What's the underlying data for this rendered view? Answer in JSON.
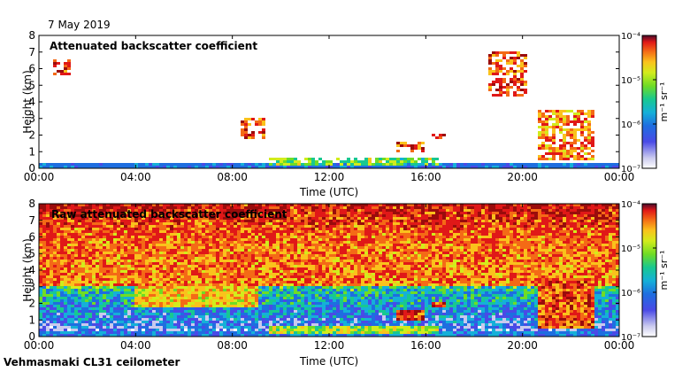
{
  "figure": {
    "date": "7 May 2019",
    "footer": "Vehmasmaki CL31 ceilometer"
  },
  "colors": {
    "scale": [
      "#ffffff",
      "#c9c9ee",
      "#4a4ae6",
      "#1e6ee0",
      "#15b0d8",
      "#18c890",
      "#6fdc25",
      "#d2ec1c",
      "#fac21c",
      "#f46a16",
      "#e01818",
      "#9a0c0c"
    ],
    "colorbar_top": "#4b0a2a"
  },
  "chart_data": [
    {
      "type": "heatmap",
      "title": "Attenuated backscatter coefficient",
      "xlabel": "Time (UTC)",
      "ylabel": "Height (km)",
      "x_ticks": [
        "00:00",
        "04:00",
        "08:00",
        "12:00",
        "16:00",
        "20:00",
        "00:00"
      ],
      "x_range_hours": [
        0,
        24
      ],
      "y_ticks": [
        "0",
        "1",
        "2",
        "3",
        "4",
        "5",
        "6",
        "7",
        "8"
      ],
      "ylim_km": [
        0,
        8
      ],
      "colorbar": {
        "unit": "m⁻¹ sr⁻¹",
        "scale": "log",
        "ticks": [
          "10⁻⁷",
          "10⁻⁶",
          "10⁻⁵",
          "10⁻⁴"
        ],
        "range": [
          1e-07,
          0.0001
        ]
      },
      "features": [
        {
          "label": "near-surface layer",
          "hours": [
            0,
            24
          ],
          "height_km": [
            0,
            0.35
          ],
          "level": 0.25
        },
        {
          "label": "boundary layer top",
          "hours": [
            9.5,
            16.5
          ],
          "height_km": [
            0.1,
            0.7
          ],
          "level": 0.55
        },
        {
          "label": "early cloud",
          "hours": [
            0.6,
            1.3
          ],
          "height_km": [
            5.6,
            6.5
          ],
          "level": 0.9
        },
        {
          "label": "cloud 08:30",
          "hours": [
            8.3,
            9.3
          ],
          "height_km": [
            1.8,
            3.0
          ],
          "level": 0.85
        },
        {
          "label": "cloud 14:50",
          "hours": [
            14.8,
            15.9
          ],
          "height_km": [
            1.0,
            1.6
          ],
          "level": 0.85
        },
        {
          "label": "cloud 16:20",
          "hours": [
            16.2,
            16.9
          ],
          "height_km": [
            1.7,
            2.0
          ],
          "level": 0.9
        },
        {
          "label": "elevated cloud 19:30",
          "hours": [
            18.6,
            20.2
          ],
          "height_km": [
            4.3,
            7.0
          ],
          "level": 0.85
        },
        {
          "label": "evening cloud",
          "hours": [
            20.6,
            23.0
          ],
          "height_km": [
            0.5,
            3.5
          ],
          "level": 0.8
        }
      ]
    },
    {
      "type": "heatmap",
      "title": "Raw attenuated backscatter coefficient",
      "xlabel": "Time (UTC)",
      "ylabel": "Height (km)",
      "x_ticks": [
        "00:00",
        "04:00",
        "08:00",
        "12:00",
        "16:00",
        "20:00",
        "00:00"
      ],
      "x_range_hours": [
        0,
        24
      ],
      "y_ticks": [
        "0",
        "1",
        "2",
        "3",
        "4",
        "5",
        "6",
        "7",
        "8"
      ],
      "ylim_km": [
        0,
        8
      ],
      "colorbar": {
        "unit": "m⁻¹ sr⁻¹",
        "scale": "log",
        "ticks": [
          "10⁻⁷",
          "10⁻⁶",
          "10⁻⁵",
          "10⁻⁴"
        ],
        "range": [
          1e-07,
          0.0001
        ]
      },
      "features": [
        {
          "label": "noise-dominated upper range",
          "hours": [
            0,
            24
          ],
          "height_km": [
            3,
            8
          ],
          "level": 0.8
        },
        {
          "label": "aerosol gradient 04-09",
          "hours": [
            4,
            9
          ],
          "height_km": [
            1.8,
            4.5
          ],
          "level": 0.7
        },
        {
          "label": "boundary layer top",
          "hours": [
            9.5,
            16.5
          ],
          "height_km": [
            0.1,
            0.7
          ],
          "level": 0.6
        },
        {
          "label": "cloud 14:50",
          "hours": [
            14.8,
            15.9
          ],
          "height_km": [
            1.0,
            1.6
          ],
          "level": 0.9
        },
        {
          "label": "cloud 16:20",
          "hours": [
            16.2,
            16.9
          ],
          "height_km": [
            1.7,
            2.0
          ],
          "level": 0.9
        },
        {
          "label": "evening cloud",
          "hours": [
            20.6,
            23.0
          ],
          "height_km": [
            0.5,
            3.5
          ],
          "level": 0.85
        }
      ]
    }
  ]
}
